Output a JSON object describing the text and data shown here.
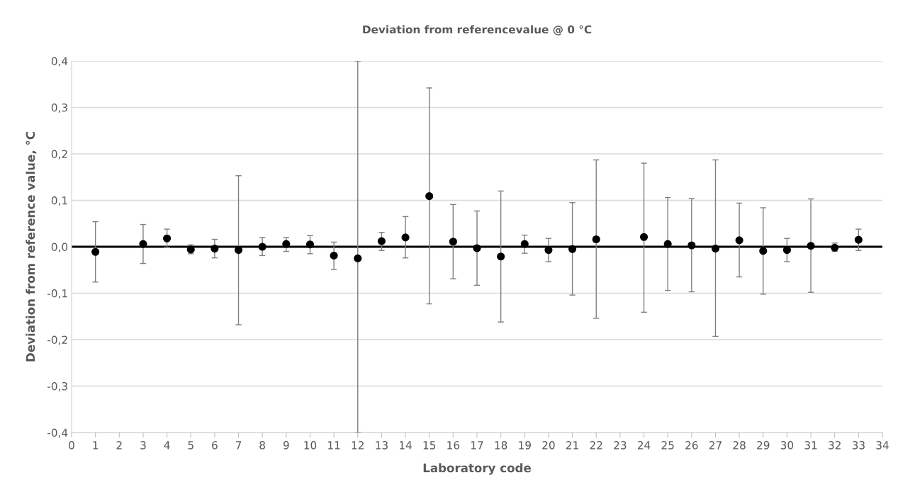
{
  "chart_data": {
    "type": "scatter",
    "title": "Deviation from referencevalue @ 0 °C",
    "xlabel": "Laboratory code",
    "ylabel": "Deviation from reference value, °C",
    "x": [
      1,
      3,
      4,
      5,
      6,
      7,
      8,
      9,
      10,
      11,
      12,
      13,
      14,
      15,
      16,
      17,
      18,
      19,
      20,
      21,
      22,
      24,
      25,
      26,
      27,
      28,
      29,
      30,
      31,
      32,
      33
    ],
    "values": [
      -0.011,
      0.006,
      0.018,
      -0.006,
      -0.004,
      -0.007,
      0.0,
      0.006,
      0.005,
      -0.019,
      -0.025,
      0.012,
      0.02,
      0.109,
      0.011,
      -0.003,
      -0.021,
      0.006,
      -0.007,
      -0.005,
      0.016,
      0.021,
      0.006,
      0.003,
      -0.004,
      0.014,
      -0.009,
      -0.007,
      0.002,
      -0.002,
      0.015
    ],
    "errors": [
      [
        -0.076,
        0.054
      ],
      [
        -0.036,
        0.048
      ],
      [
        -0.001,
        0.038
      ],
      [
        -0.015,
        0.004
      ],
      [
        -0.024,
        0.016
      ],
      [
        -0.168,
        0.153
      ],
      [
        -0.019,
        0.02
      ],
      [
        -0.01,
        0.02
      ],
      [
        -0.015,
        0.024
      ],
      [
        -0.049,
        0.01
      ],
      [
        -0.4,
        0.4
      ],
      [
        -0.008,
        0.031
      ],
      [
        -0.024,
        0.065
      ],
      [
        -0.123,
        0.342
      ],
      [
        -0.069,
        0.091
      ],
      [
        -0.083,
        0.077
      ],
      [
        -0.162,
        0.12
      ],
      [
        -0.014,
        0.025
      ],
      [
        -0.032,
        0.018
      ],
      [
        -0.104,
        0.095
      ],
      [
        -0.154,
        0.187
      ],
      [
        -0.141,
        0.18
      ],
      [
        -0.094,
        0.106
      ],
      [
        -0.097,
        0.104
      ],
      [
        -0.193,
        0.187
      ],
      [
        -0.065,
        0.094
      ],
      [
        -0.102,
        0.084
      ],
      [
        -0.032,
        0.018
      ],
      [
        -0.098,
        0.103
      ],
      [
        -0.01,
        0.008
      ],
      [
        -0.008,
        0.038
      ]
    ],
    "color": "#000000",
    "marker": "circle",
    "xlim": [
      0,
      34
    ],
    "xticks": [
      0,
      1,
      2,
      3,
      4,
      5,
      6,
      7,
      8,
      9,
      10,
      11,
      12,
      13,
      14,
      15,
      16,
      17,
      18,
      19,
      20,
      21,
      22,
      23,
      24,
      25,
      26,
      27,
      28,
      29,
      30,
      31,
      32,
      33,
      34
    ],
    "ylim": [
      -0.4,
      0.4
    ],
    "yticks": [
      {
        "value": -0.4,
        "label": "-0,4"
      },
      {
        "value": -0.3,
        "label": "-0,3"
      },
      {
        "value": -0.2,
        "label": "-0,2"
      },
      {
        "value": -0.1,
        "label": "-0,1"
      },
      {
        "value": 0.0,
        "label": "0,0"
      },
      {
        "value": 0.1,
        "label": "0,1"
      },
      {
        "value": 0.2,
        "label": "0,2"
      },
      {
        "value": 0.3,
        "label": "0,3"
      },
      {
        "value": 0.4,
        "label": "0,4"
      }
    ],
    "ref_lines": [
      {
        "axis": "y",
        "value": 0,
        "color": "#000000"
      }
    ],
    "grid": "y"
  }
}
